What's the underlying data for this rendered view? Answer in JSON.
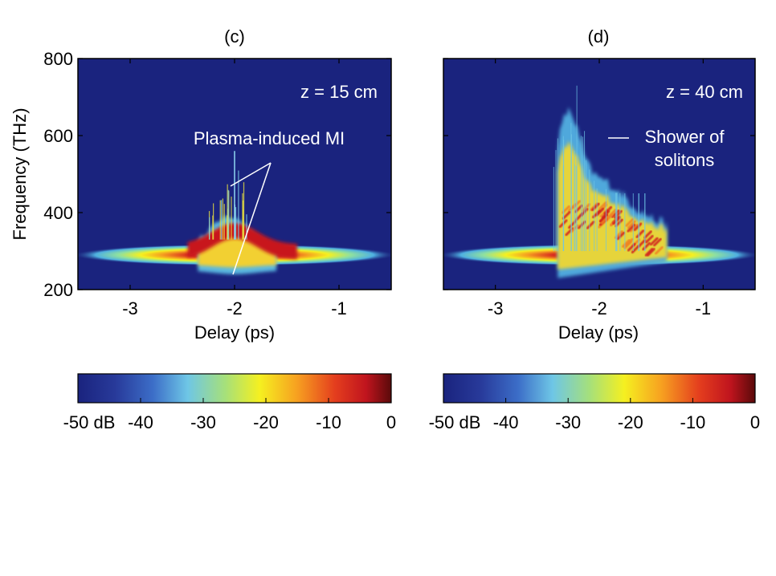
{
  "chart_data": [
    {
      "type": "heatmap",
      "panel_label": "(c)",
      "xlabel": "Delay (ps)",
      "ylabel": "Frequency (THz)",
      "xlim": [
        -3.5,
        -0.5
      ],
      "ylim": [
        200,
        800
      ],
      "xticks": [
        -3,
        -2,
        -1
      ],
      "xtick_labels": [
        "-3",
        "-2",
        "-1"
      ],
      "yticks": [
        200,
        400,
        600,
        800
      ],
      "ytick_labels": [
        "200",
        "400",
        "600",
        "800"
      ],
      "annotations": [
        {
          "text": "z = 15 cm"
        },
        {
          "text": "Plasma-induced MI"
        }
      ],
      "features": {
        "pump_center_delay": -2.0,
        "pump_center_freq": 290,
        "pump_halfwidth_delay": 1.55,
        "pump_halfwidth_freq": 28,
        "broadening_delay_range": [
          -2.35,
          -1.6
        ],
        "broadening_peak_freq": 340,
        "spike_delay": -2.0,
        "spike_max_freq": 560
      },
      "colorbar": {
        "range": [
          -50,
          0
        ],
        "tick_labels": [
          "-50 dB",
          "-40",
          "-30",
          "-20",
          "-10",
          "0"
        ],
        "colormap": [
          "#1a237e",
          "#2a3f9e",
          "#3f7fd0",
          "#6ec6e6",
          "#a6e07a",
          "#f5f020",
          "#f7b020",
          "#e84020",
          "#c8141e",
          "#5a0a0a"
        ]
      }
    },
    {
      "type": "heatmap",
      "panel_label": "(d)",
      "xlabel": "Delay (ps)",
      "ylabel": "",
      "xlim": [
        -3.5,
        -0.5
      ],
      "ylim": [
        200,
        800
      ],
      "xticks": [
        -3,
        -2,
        -1
      ],
      "xtick_labels": [
        "-3",
        "-2",
        "-1"
      ],
      "yticks": [
        200,
        400,
        600,
        800
      ],
      "annotations": [
        {
          "text": "z = 40 cm"
        },
        {
          "text": "Shower of"
        },
        {
          "text": "solitons"
        }
      ],
      "features": {
        "pump_center_delay": -2.0,
        "pump_center_freq": 290,
        "pump_halfwidth_delay": 1.55,
        "pump_halfwidth_freq": 28,
        "broadening_delay_range": [
          -2.4,
          -1.35
        ],
        "sharp_edge_delay": -2.4,
        "tall_spikes_delay": [
          -2.35,
          -2.25,
          -2.05,
          -1.9
        ],
        "spike_max_freq": 800
      },
      "colorbar": {
        "range": [
          -50,
          0
        ],
        "tick_labels": [
          "-50 dB",
          "-40",
          "-30",
          "-20",
          "-10",
          "0"
        ],
        "colormap": [
          "#1a237e",
          "#2a3f9e",
          "#3f7fd0",
          "#6ec6e6",
          "#a6e07a",
          "#f5f020",
          "#f7b020",
          "#e84020",
          "#c8141e",
          "#5a0a0a"
        ]
      }
    }
  ]
}
